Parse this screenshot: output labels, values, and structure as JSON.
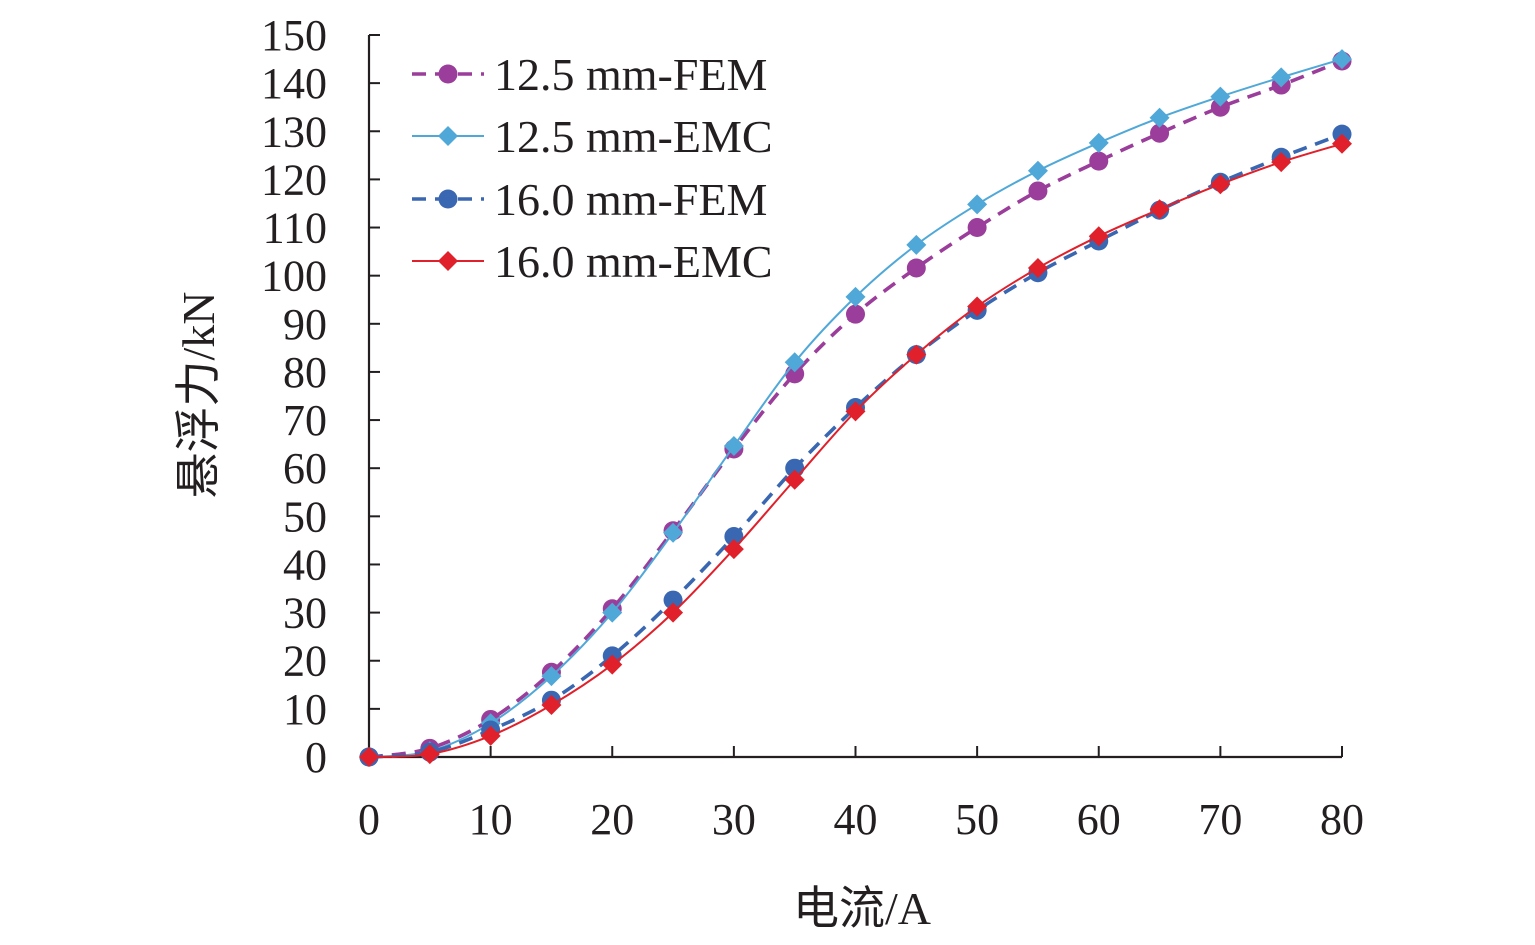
{
  "chart_data": {
    "type": "line",
    "title": "",
    "xlabel": "电流/A",
    "ylabel": "悬浮力/kN",
    "xlim": [
      0,
      80
    ],
    "ylim": [
      0,
      150
    ],
    "x_ticks": [
      0,
      10,
      20,
      30,
      40,
      50,
      60,
      70,
      80
    ],
    "y_ticks": [
      0,
      10,
      20,
      30,
      40,
      50,
      60,
      70,
      80,
      90,
      100,
      110,
      120,
      130,
      140,
      150
    ],
    "grid": false,
    "legend_position": "top-left",
    "x": [
      0,
      5,
      10,
      15,
      20,
      25,
      30,
      35,
      40,
      45,
      50,
      55,
      60,
      65,
      70,
      75,
      80
    ],
    "series": [
      {
        "name": "12.5 mm-FEM",
        "color": "#9b3d9a",
        "line_style": "dashed",
        "marker": "circle",
        "values": [
          0,
          1.8,
          7.8,
          17.6,
          30.8,
          47,
          64,
          79.6,
          92,
          101.6,
          110,
          117.6,
          123.8,
          129.6,
          135,
          139.6,
          144.6
        ]
      },
      {
        "name": "12.5 mm-EMC",
        "color": "#4fa8d8",
        "line_style": "solid",
        "marker": "diamond",
        "values": [
          0,
          1.2,
          7,
          16.8,
          30,
          46.6,
          64.6,
          82,
          95.6,
          106.4,
          114.8,
          121.8,
          127.6,
          132.8,
          137.2,
          141.2,
          145
        ]
      },
      {
        "name": "16.0 mm-FEM",
        "color": "#3a67b1",
        "line_style": "dashed",
        "marker": "circle",
        "values": [
          0,
          1,
          5.6,
          11.8,
          21,
          32.6,
          45.8,
          60,
          72.6,
          83.6,
          92.8,
          100.6,
          107.2,
          113.6,
          119.4,
          124.6,
          129.4
        ]
      },
      {
        "name": "16.0 mm-EMC",
        "color": "#e0202a",
        "line_style": "solid",
        "marker": "diamond",
        "values": [
          0,
          0.6,
          4.4,
          10.8,
          19.2,
          30,
          43.2,
          57.6,
          71.8,
          83.6,
          93.6,
          101.6,
          108.2,
          113.8,
          119,
          123.6,
          127.4
        ]
      }
    ]
  }
}
